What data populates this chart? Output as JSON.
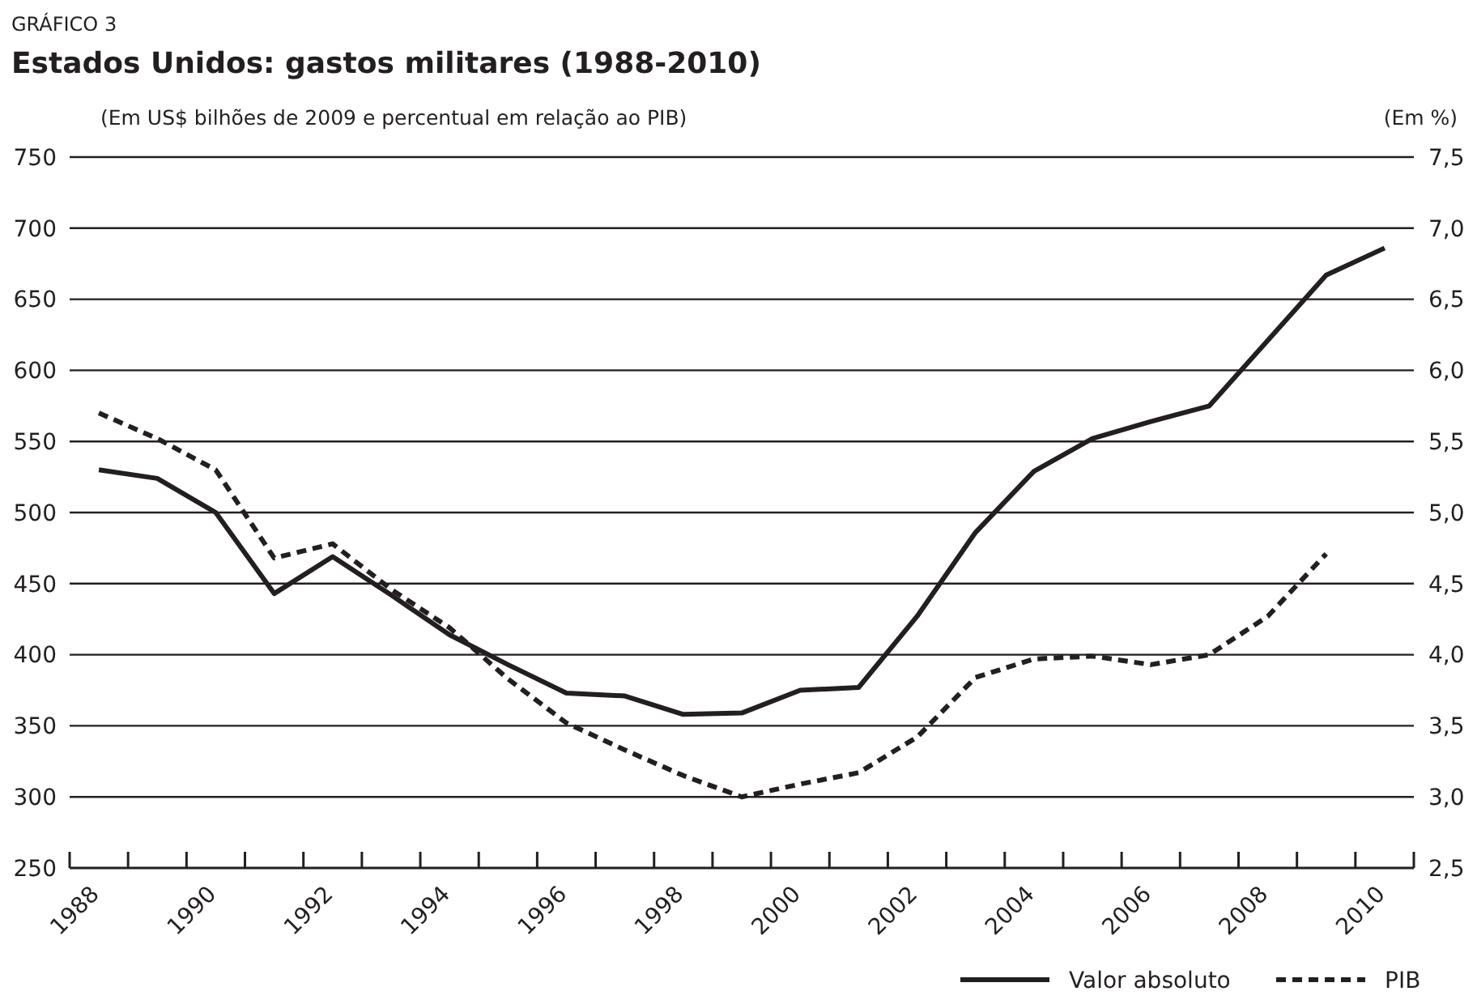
{
  "chart_data": {
    "type": "line",
    "title": "Estados Unidos: gastos militares (1988-2010)",
    "annotations": [
      "GRÁFICO 3"
    ],
    "ylabel": "(Em US$ bilhões de 2009 e percentual em relação ao PIB)",
    "y2label": "(Em %)",
    "categories": [
      "1988",
      null,
      "1990",
      null,
      "1992",
      null,
      "1994",
      null,
      "1996",
      null,
      "1998",
      null,
      "2000",
      null,
      "2002",
      null,
      "2004",
      null,
      "2006",
      null,
      "2008",
      null,
      "2010"
    ],
    "series": [
      {
        "name": "Valor absoluto",
        "color": "#231f20",
        "line_style": "solid",
        "values": [
          530,
          524,
          500,
          443,
          469,
          442,
          414,
          393,
          373,
          371,
          358,
          359,
          375,
          377,
          427,
          486,
          529,
          552,
          564,
          575,
          621,
          667,
          686
        ]
      },
      {
        "name": "PIB",
        "color": "#231f20",
        "line_style": "dashed",
        "axis": "y2",
        "values": [
          5.7,
          5.52,
          5.3,
          4.68,
          4.78,
          4.46,
          4.19,
          3.83,
          3.52,
          3.33,
          3.15,
          3.0,
          3.09,
          3.17,
          3.42,
          3.84,
          3.97,
          3.99,
          3.93,
          4.0,
          4.27,
          4.71,
          null
        ]
      }
    ],
    "ylim": [
      250,
      750
    ],
    "yticks": [
      250,
      300,
      350,
      400,
      450,
      500,
      550,
      600,
      650,
      700,
      750
    ],
    "y2lim": [
      2.5,
      7.5
    ],
    "y2ticks": [
      {
        "value": 2.5,
        "label": "2,5"
      },
      {
        "value": 3,
        "label": "3,0"
      },
      {
        "value": 3.5,
        "label": "3,5"
      },
      {
        "value": 4,
        "label": "4,0"
      },
      {
        "value": 4.5,
        "label": "4,5"
      },
      {
        "value": 5,
        "label": "5,0"
      },
      {
        "value": 5.5,
        "label": "5,5"
      },
      {
        "value": 6,
        "label": "6,0"
      },
      {
        "value": 6.5,
        "label": "6,5"
      },
      {
        "value": 7,
        "label": "7,0"
      },
      {
        "value": 7.5,
        "label": "7,5"
      }
    ],
    "grid": "y",
    "legend": "bottom right",
    "marker": "none"
  }
}
